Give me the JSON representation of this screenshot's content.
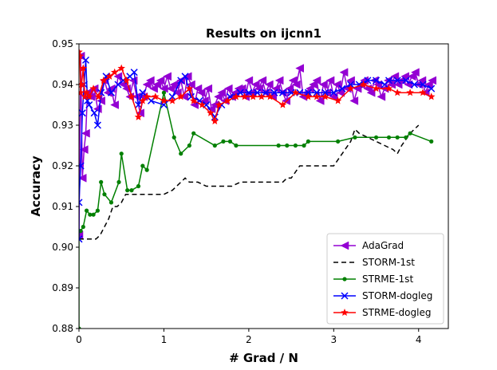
{
  "chart_data": {
    "type": "line",
    "title": "Results on ijcnn1",
    "xlabel": "# Grad / N",
    "ylabel": "Accuracy",
    "xlim": [
      0,
      4.35
    ],
    "ylim": [
      0.88,
      0.95
    ],
    "xticks": [
      0,
      1,
      2,
      3,
      4
    ],
    "yticks": [
      0.88,
      0.89,
      0.9,
      0.91,
      0.92,
      0.93,
      0.94,
      0.95
    ],
    "ytick_labels": [
      "0.88",
      "0.89",
      "0.90",
      "0.91",
      "0.92",
      "0.93",
      "0.94",
      "0.95"
    ],
    "xtick_labels": [
      "0",
      "1",
      "2",
      "3",
      "4"
    ],
    "grid": false,
    "legend_position": "bottom-right",
    "series": [
      {
        "name": "AdaGrad",
        "color": "#9400d3",
        "marker": "triangle-left",
        "dash": "solid",
        "x": [
          0.0,
          0.02,
          0.04,
          0.06,
          0.08,
          0.1,
          0.14,
          0.18,
          0.22,
          0.26,
          0.3,
          0.34,
          0.38,
          0.42,
          0.46,
          0.52,
          0.56,
          0.6,
          0.64,
          0.68,
          0.72,
          0.76,
          0.8,
          0.84,
          0.88,
          0.92,
          0.96,
          1.0,
          1.04,
          1.08,
          1.12,
          1.16,
          1.2,
          1.24,
          1.28,
          1.32,
          1.36,
          1.4,
          1.44,
          1.48,
          1.52,
          1.56,
          1.6,
          1.64,
          1.68,
          1.72,
          1.76,
          1.8,
          1.84,
          1.88,
          1.92,
          1.96,
          2.0,
          2.04,
          2.08,
          2.12,
          2.16,
          2.2,
          2.24,
          2.28,
          2.32,
          2.36,
          2.4,
          2.44,
          2.48,
          2.52,
          2.56,
          2.6,
          2.64,
          2.68,
          2.72,
          2.76,
          2.8,
          2.84,
          2.88,
          2.92,
          2.96,
          3.0,
          3.04,
          3.08,
          3.12,
          3.16,
          3.2,
          3.24,
          3.28,
          3.32,
          3.36,
          3.4,
          3.44,
          3.48,
          3.52,
          3.56,
          3.6,
          3.64,
          3.68,
          3.72,
          3.76,
          3.8,
          3.84,
          3.88,
          3.92,
          3.96,
          4.0,
          4.04,
          4.08,
          4.12,
          4.16
        ],
        "y": [
          0.903,
          0.947,
          0.917,
          0.924,
          0.928,
          0.938,
          0.937,
          0.939,
          0.934,
          0.936,
          0.941,
          0.938,
          0.939,
          0.935,
          0.942,
          0.94,
          0.939,
          0.937,
          0.941,
          0.937,
          0.933,
          0.937,
          0.94,
          0.941,
          0.939,
          0.94,
          0.941,
          0.939,
          0.942,
          0.939,
          0.94,
          0.938,
          0.941,
          0.937,
          0.942,
          0.94,
          0.935,
          0.939,
          0.938,
          0.936,
          0.939,
          0.934,
          0.935,
          0.937,
          0.938,
          0.936,
          0.939,
          0.937,
          0.938,
          0.939,
          0.939,
          0.937,
          0.941,
          0.938,
          0.94,
          0.939,
          0.941,
          0.938,
          0.94,
          0.937,
          0.939,
          0.941,
          0.938,
          0.936,
          0.939,
          0.941,
          0.94,
          0.944,
          0.937,
          0.938,
          0.939,
          0.94,
          0.941,
          0.936,
          0.94,
          0.938,
          0.941,
          0.937,
          0.94,
          0.938,
          0.943,
          0.939,
          0.941,
          0.936,
          0.939,
          0.94,
          0.941,
          0.939,
          0.938,
          0.941,
          0.94,
          0.937,
          0.939,
          0.941,
          0.94,
          0.942,
          0.94,
          0.941,
          0.942,
          0.94,
          0.942,
          0.943,
          0.94,
          0.941,
          0.938,
          0.94,
          0.941
        ]
      },
      {
        "name": "STORM-1st",
        "color": "#000000",
        "marker": "none",
        "dash": "dashed",
        "x": [
          0.0,
          0.02,
          0.05,
          0.1,
          0.15,
          0.2,
          0.25,
          0.3,
          0.35,
          0.4,
          0.45,
          0.5,
          0.55,
          0.6,
          0.7,
          0.8,
          0.9,
          1.0,
          1.1,
          1.2,
          1.25,
          1.3,
          1.4,
          1.5,
          1.6,
          1.7,
          1.8,
          1.9,
          2.0,
          2.1,
          2.2,
          2.3,
          2.4,
          2.45,
          2.5,
          2.6,
          2.7,
          2.8,
          2.9,
          3.0,
          3.1,
          3.2,
          3.25,
          3.3,
          3.4,
          3.5,
          3.6,
          3.7,
          3.75,
          3.8,
          3.9,
          4.0
        ],
        "y": [
          0.902,
          0.902,
          0.902,
          0.902,
          0.902,
          0.902,
          0.903,
          0.905,
          0.907,
          0.91,
          0.91,
          0.911,
          0.913,
          0.913,
          0.913,
          0.913,
          0.913,
          0.913,
          0.914,
          0.916,
          0.917,
          0.916,
          0.916,
          0.915,
          0.915,
          0.915,
          0.915,
          0.916,
          0.916,
          0.916,
          0.916,
          0.916,
          0.916,
          0.917,
          0.917,
          0.92,
          0.92,
          0.92,
          0.92,
          0.92,
          0.923,
          0.926,
          0.929,
          0.928,
          0.927,
          0.926,
          0.925,
          0.924,
          0.923,
          0.925,
          0.928,
          0.93
        ]
      },
      {
        "name": "STRME-1st",
        "color": "#008000",
        "marker": "circle",
        "dash": "solid",
        "x": [
          0.0,
          0.0,
          0.02,
          0.05,
          0.09,
          0.13,
          0.17,
          0.22,
          0.26,
          0.3,
          0.38,
          0.47,
          0.5,
          0.57,
          0.62,
          0.7,
          0.75,
          0.8,
          1.0,
          1.12,
          1.2,
          1.3,
          1.35,
          1.6,
          1.7,
          1.78,
          1.85,
          2.35,
          2.45,
          2.55,
          2.65,
          2.7,
          3.05,
          3.25,
          3.5,
          3.65,
          3.75,
          3.85,
          3.9,
          4.15
        ],
        "y": [
          0.88,
          0.904,
          0.904,
          0.905,
          0.909,
          0.908,
          0.908,
          0.909,
          0.916,
          0.913,
          0.911,
          0.916,
          0.923,
          0.914,
          0.914,
          0.915,
          0.92,
          0.919,
          0.938,
          0.927,
          0.923,
          0.925,
          0.928,
          0.925,
          0.926,
          0.926,
          0.925,
          0.925,
          0.925,
          0.925,
          0.925,
          0.926,
          0.926,
          0.927,
          0.927,
          0.927,
          0.927,
          0.927,
          0.928,
          0.926
        ]
      },
      {
        "name": "STORM-dogleg",
        "color": "#0000ff",
        "marker": "x",
        "dash": "solid",
        "x": [
          0.0,
          0.0,
          0.02,
          0.04,
          0.06,
          0.08,
          0.1,
          0.12,
          0.18,
          0.22,
          0.26,
          0.32,
          0.38,
          0.46,
          0.52,
          0.6,
          0.65,
          0.7,
          0.75,
          0.85,
          1.0,
          1.1,
          1.2,
          1.25,
          1.32,
          1.42,
          1.5,
          1.6,
          1.68,
          1.78,
          1.9,
          2.0,
          2.1,
          2.2,
          2.3,
          2.4,
          2.5,
          2.6,
          2.7,
          2.8,
          2.9,
          3.0,
          3.1,
          3.2,
          3.3,
          3.4,
          3.5,
          3.6,
          3.65,
          3.75,
          3.85,
          3.95,
          4.05,
          4.15
        ],
        "y": [
          0.902,
          0.911,
          0.92,
          0.933,
          0.94,
          0.946,
          0.936,
          0.935,
          0.933,
          0.93,
          0.938,
          0.942,
          0.938,
          0.94,
          0.941,
          0.942,
          0.943,
          0.935,
          0.938,
          0.936,
          0.935,
          0.937,
          0.941,
          0.942,
          0.937,
          0.936,
          0.935,
          0.932,
          0.935,
          0.937,
          0.938,
          0.938,
          0.938,
          0.938,
          0.938,
          0.938,
          0.938,
          0.938,
          0.938,
          0.938,
          0.938,
          0.938,
          0.939,
          0.94,
          0.94,
          0.941,
          0.941,
          0.94,
          0.941,
          0.941,
          0.941,
          0.94,
          0.94,
          0.939
        ]
      },
      {
        "name": "STRME-dogleg",
        "color": "#ff0000",
        "marker": "star",
        "dash": "solid",
        "x": [
          0.0,
          0.01,
          0.02,
          0.03,
          0.05,
          0.07,
          0.09,
          0.12,
          0.17,
          0.23,
          0.29,
          0.36,
          0.42,
          0.5,
          0.56,
          0.62,
          0.7,
          0.75,
          0.8,
          0.9,
          1.0,
          1.1,
          1.2,
          1.3,
          1.35,
          1.45,
          1.55,
          1.6,
          1.65,
          1.75,
          1.85,
          1.95,
          2.05,
          2.15,
          2.25,
          2.4,
          2.55,
          2.7,
          2.8,
          2.9,
          3.05,
          3.2,
          3.35,
          3.5,
          3.65,
          3.75,
          3.9,
          4.05,
          4.15
        ],
        "y": [
          0.948,
          0.947,
          0.938,
          0.94,
          0.944,
          0.937,
          0.938,
          0.937,
          0.939,
          0.937,
          0.941,
          0.942,
          0.943,
          0.944,
          0.941,
          0.937,
          0.932,
          0.936,
          0.937,
          0.937,
          0.936,
          0.936,
          0.937,
          0.939,
          0.936,
          0.935,
          0.933,
          0.931,
          0.935,
          0.936,
          0.937,
          0.937,
          0.937,
          0.937,
          0.937,
          0.935,
          0.938,
          0.937,
          0.937,
          0.937,
          0.936,
          0.939,
          0.94,
          0.939,
          0.939,
          0.938,
          0.938,
          0.938,
          0.937
        ]
      }
    ]
  }
}
